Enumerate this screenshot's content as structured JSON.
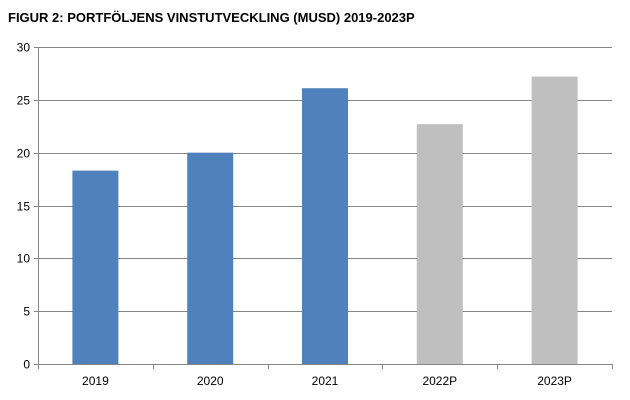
{
  "chart_data": {
    "type": "bar",
    "title": "FIGUR 2: PORTFÖLJENS VINSTUTVECKLING (MUSD) 2019-2023P",
    "xlabel": "",
    "ylabel": "",
    "categories": [
      "2019",
      "2020",
      "2021",
      "2022P",
      "2023P"
    ],
    "values": [
      18.3,
      20.0,
      26.1,
      22.7,
      27.2
    ],
    "ylim": [
      0,
      30
    ],
    "yticks": [
      0,
      5,
      10,
      15,
      20,
      25,
      30
    ],
    "grid": true,
    "colors": {
      "actual": "#4F81BD",
      "projected": "#BFBFBF",
      "grid": "#868686",
      "axis": "#868686"
    },
    "bar_kinds": [
      "actual",
      "actual",
      "actual",
      "projected",
      "projected"
    ]
  }
}
